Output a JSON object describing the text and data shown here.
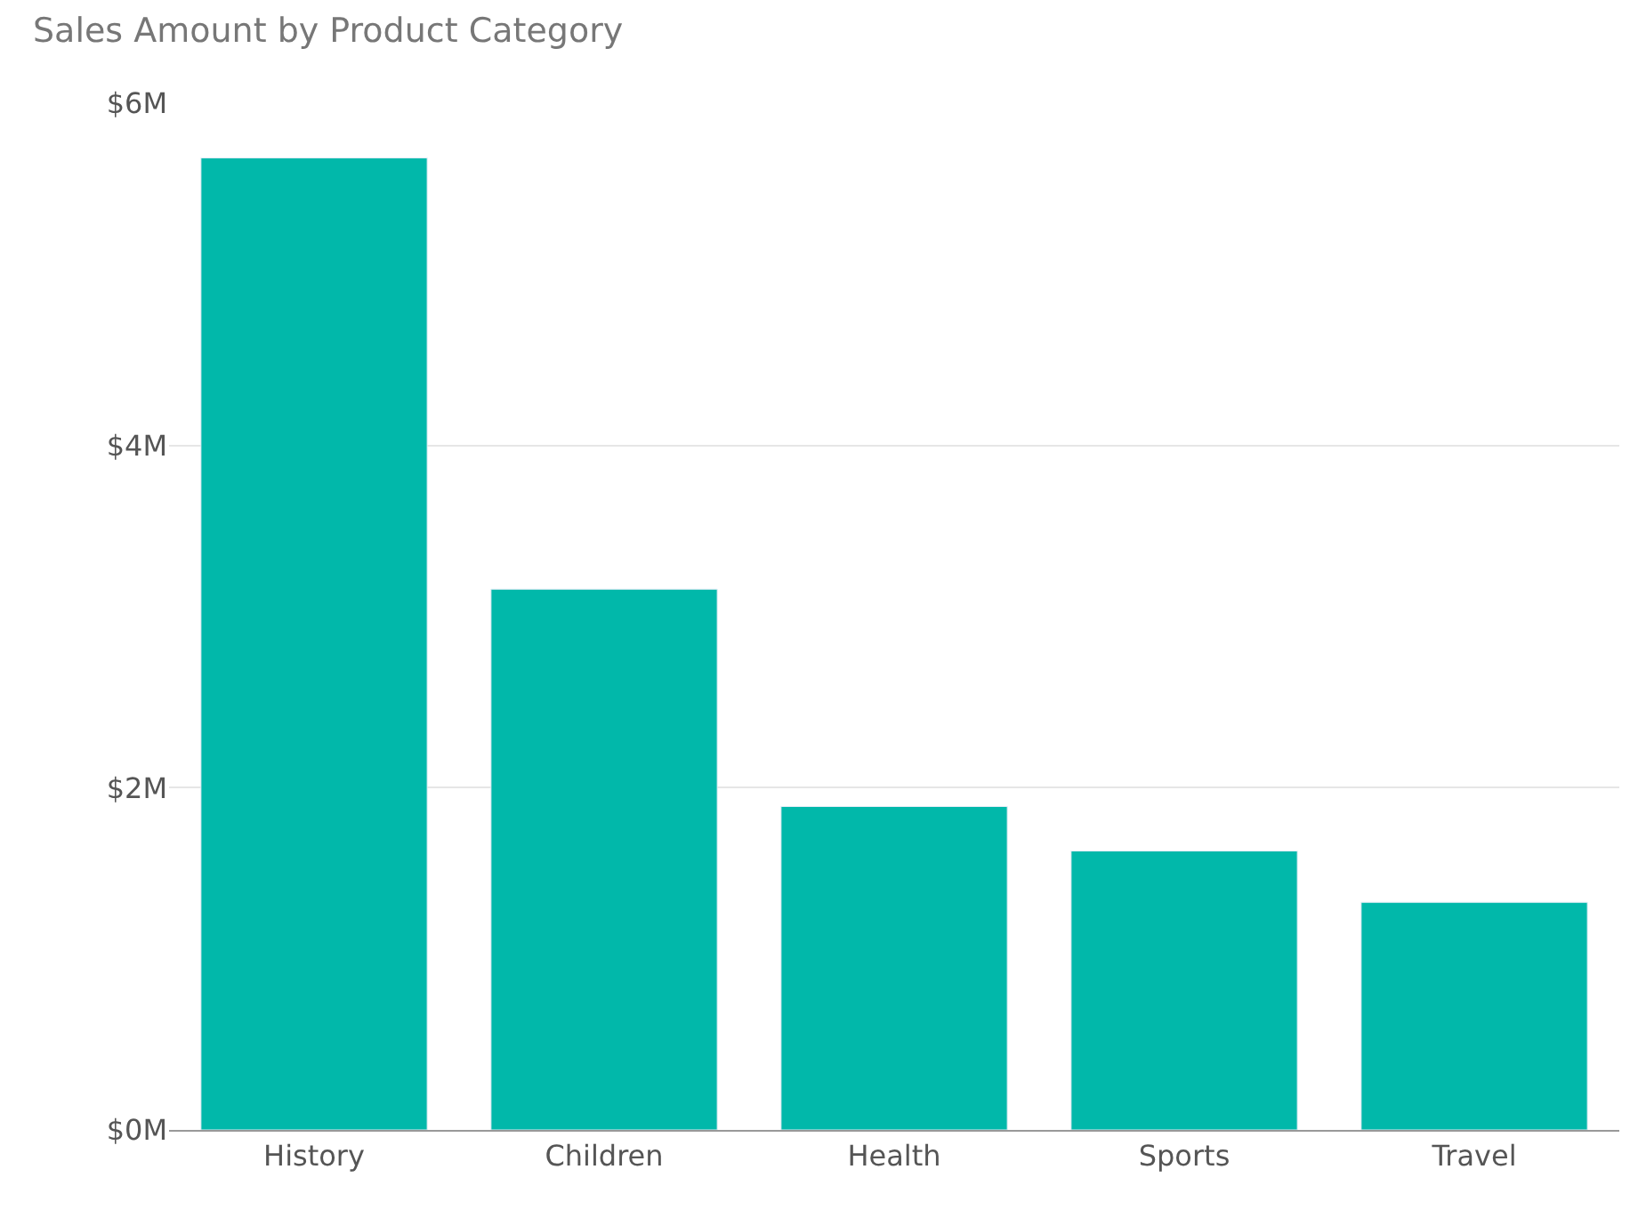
{
  "chart_data": {
    "type": "bar",
    "title": "Sales Amount by Product Category",
    "categories": [
      "History",
      "Children",
      "Health",
      "Sports",
      "Travel"
    ],
    "values": [
      5.68,
      3.16,
      1.89,
      1.63,
      1.33
    ],
    "color": "#01b8aa",
    "ylim": [
      0,
      6
    ],
    "yticks": [
      {
        "value": 0,
        "label": "$0M"
      },
      {
        "value": 2,
        "label": "$2M"
      },
      {
        "value": 4,
        "label": "$4M"
      },
      {
        "value": 6,
        "label": "$6M"
      }
    ],
    "grid": "y"
  }
}
